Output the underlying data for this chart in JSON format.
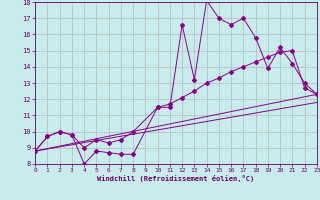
{
  "xlabel": "Windchill (Refroidissement éolien,°C)",
  "bg_color": "#c8ecec",
  "line_color": "#880088",
  "grid_color": "#b0b0b0",
  "axis_color": "#660066",
  "spine_color": "#660066",
  "x_min": 0,
  "x_max": 23,
  "y_min": 8,
  "y_max": 18,
  "x_ticks": [
    0,
    1,
    2,
    3,
    4,
    5,
    6,
    7,
    8,
    9,
    10,
    11,
    12,
    13,
    14,
    15,
    16,
    17,
    18,
    19,
    20,
    21,
    22,
    23
  ],
  "y_ticks": [
    8,
    9,
    10,
    11,
    12,
    13,
    14,
    15,
    16,
    17,
    18
  ],
  "line1_x": [
    0,
    1,
    2,
    3,
    4,
    5,
    6,
    7,
    8,
    10,
    11,
    12,
    13,
    14,
    15,
    16,
    17,
    18,
    19,
    20,
    21,
    22,
    23
  ],
  "line1_y": [
    8.8,
    9.7,
    10.0,
    9.8,
    8.0,
    8.8,
    8.7,
    8.6,
    8.6,
    11.5,
    11.5,
    16.6,
    13.2,
    18.1,
    17.0,
    16.6,
    17.0,
    15.8,
    13.9,
    15.2,
    14.2,
    13.0,
    12.3
  ],
  "line2_x": [
    0,
    1,
    2,
    3,
    4,
    5,
    6,
    7,
    8,
    10,
    11,
    12,
    13,
    14,
    15,
    16,
    17,
    18,
    19,
    20,
    21,
    22,
    23
  ],
  "line2_y": [
    8.8,
    9.7,
    10.0,
    9.8,
    9.0,
    9.5,
    9.3,
    9.5,
    10.0,
    11.5,
    11.7,
    12.1,
    12.5,
    13.0,
    13.3,
    13.7,
    14.0,
    14.3,
    14.6,
    14.9,
    15.0,
    12.7,
    12.3
  ],
  "line3_x": [
    0,
    23
  ],
  "line3_y": [
    8.8,
    12.3
  ],
  "line4_x": [
    0,
    23
  ],
  "line4_y": [
    8.8,
    11.8
  ]
}
